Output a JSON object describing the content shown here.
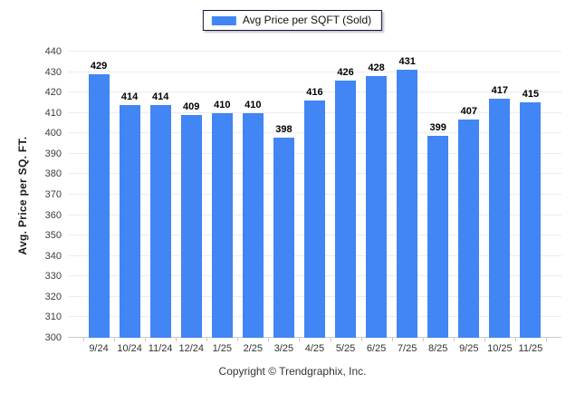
{
  "legend": {
    "label": "Avg Price per SQFT (Sold)",
    "swatch_color": "#4285F4"
  },
  "footer": {
    "text": "Copyright © Trendgraphix, Inc."
  },
  "chart_data": {
    "type": "bar",
    "title": "",
    "categories": [
      "9/24",
      "10/24",
      "11/24",
      "12/24",
      "1/25",
      "2/25",
      "3/25",
      "4/25",
      "5/25",
      "6/25",
      "7/25",
      "8/25",
      "9/25",
      "10/25",
      "11/25"
    ],
    "values": [
      429,
      414,
      414,
      409,
      410,
      410,
      398,
      416,
      426,
      428,
      431,
      399,
      407,
      417,
      415
    ],
    "series_name": "Avg Price per SQFT (Sold)",
    "xlabel": "",
    "ylabel": "Avg. Price per SQ. FT.",
    "ylim": [
      300,
      440
    ],
    "ytick_step": 10,
    "bar_color": "#4285F4",
    "grid": true,
    "legend_position": "top"
  }
}
